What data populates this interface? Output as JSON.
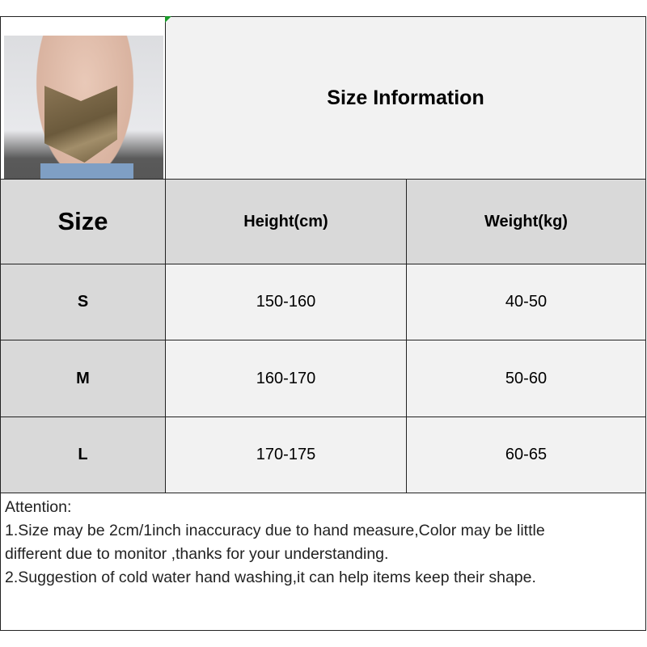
{
  "title": "Size Information",
  "headers": {
    "size": "Size",
    "height": "Height(cm)",
    "weight": "Weight(kg)"
  },
  "rows": [
    {
      "size": "S",
      "height": "150-160",
      "weight": "40-50"
    },
    {
      "size": "M",
      "height": "160-170",
      "weight": "50-60"
    },
    {
      "size": "L",
      "height": "170-175",
      "weight": "60-65"
    }
  ],
  "notes": {
    "heading": "Attention:",
    "line1": "1.Size may be 2cm/1inch inaccuracy due to hand measure,Color may be little",
    "line2": "different due to monitor ,thanks for your understanding.",
    "line3": "2.Suggestion of cold water hand washing,it can help items keep their shape."
  },
  "colors": {
    "header_bg": "#d9d9d9",
    "cell_bg": "#f2f2f2",
    "border": "#222222"
  }
}
